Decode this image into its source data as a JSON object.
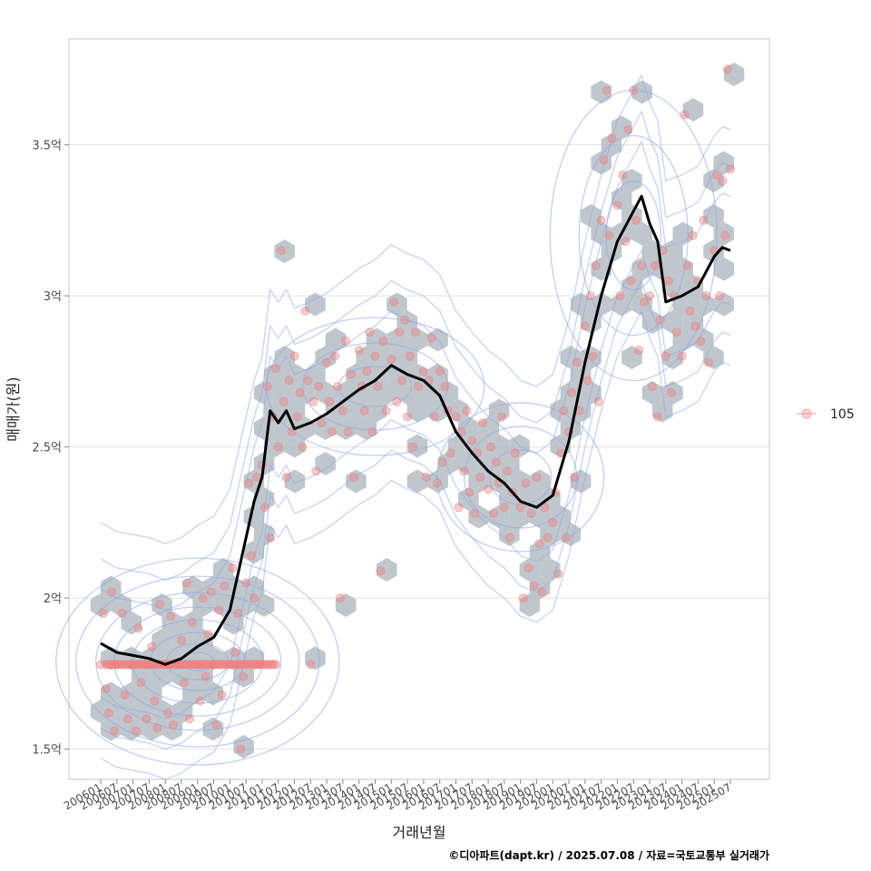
{
  "chart_data": {
    "type": "scatter",
    "xlabel": "거래년월",
    "ylabel": "매매가(원)",
    "credit": "©디아파트(dapt.kr) / 2025.07.08 / 자료=국토교통부 실거래가",
    "legend": {
      "placement": "right",
      "entries": [
        "105"
      ]
    },
    "grid": true,
    "xlim": [
      "2006-01",
      "2025-07"
    ],
    "ylim": [
      1.4,
      3.85
    ],
    "y_unit": "억",
    "y_ticks": [
      {
        "value": 1.5,
        "label": "1.5억"
      },
      {
        "value": 2.0,
        "label": "2억"
      },
      {
        "value": 2.5,
        "label": "2.5억"
      },
      {
        "value": 3.0,
        "label": "3억"
      },
      {
        "value": 3.5,
        "label": "3.5억"
      }
    ],
    "x_ticks": [
      "200601",
      "200607",
      "200701",
      "200707",
      "200801",
      "200807",
      "200901",
      "200907",
      "201001",
      "201007",
      "201101",
      "201107",
      "201201",
      "201207",
      "201301",
      "201307",
      "201401",
      "201407",
      "201501",
      "201507",
      "201601",
      "201607",
      "201701",
      "201707",
      "201801",
      "201807",
      "201901",
      "201907",
      "202001",
      "202007",
      "202101",
      "202107",
      "202201",
      "202207",
      "202301",
      "202307",
      "202401",
      "202407",
      "202501",
      "202507"
    ],
    "colors": {
      "points": "#f08080",
      "hexbin": "#aab4bc",
      "density": "#8fa8e8",
      "trend": "#000000"
    },
    "trend_line": {
      "name": "moving average",
      "points": [
        [
          "2006-01",
          1.85
        ],
        [
          "2006-07",
          1.82
        ],
        [
          "2007-01",
          1.81
        ],
        [
          "2007-07",
          1.8
        ],
        [
          "2008-01",
          1.78
        ],
        [
          "2008-07",
          1.8
        ],
        [
          "2009-01",
          1.84
        ],
        [
          "2009-07",
          1.87
        ],
        [
          "2010-01",
          1.96
        ],
        [
          "2010-07",
          2.2
        ],
        [
          "2010-10",
          2.32
        ],
        [
          "2011-01",
          2.4
        ],
        [
          "2011-04",
          2.62
        ],
        [
          "2011-07",
          2.58
        ],
        [
          "2011-10",
          2.62
        ],
        [
          "2012-01",
          2.56
        ],
        [
          "2012-07",
          2.58
        ],
        [
          "2013-01",
          2.61
        ],
        [
          "2013-07",
          2.65
        ],
        [
          "2014-01",
          2.69
        ],
        [
          "2014-07",
          2.72
        ],
        [
          "2015-01",
          2.77
        ],
        [
          "2015-07",
          2.74
        ],
        [
          "2016-01",
          2.72
        ],
        [
          "2016-07",
          2.67
        ],
        [
          "2017-01",
          2.55
        ],
        [
          "2017-07",
          2.48
        ],
        [
          "2018-01",
          2.42
        ],
        [
          "2018-07",
          2.38
        ],
        [
          "2019-01",
          2.32
        ],
        [
          "2019-07",
          2.3
        ],
        [
          "2020-01",
          2.34
        ],
        [
          "2020-07",
          2.52
        ],
        [
          "2021-01",
          2.78
        ],
        [
          "2021-07",
          3.0
        ],
        [
          "2022-01",
          3.18
        ],
        [
          "2022-07",
          3.28
        ],
        [
          "2022-10",
          3.33
        ],
        [
          "2023-01",
          3.24
        ],
        [
          "2023-04",
          3.18
        ],
        [
          "2023-07",
          2.98
        ],
        [
          "2024-01",
          3.0
        ],
        [
          "2024-07",
          3.03
        ],
        [
          "2025-01",
          3.13
        ],
        [
          "2025-04",
          3.16
        ],
        [
          "2025-07",
          3.15
        ]
      ]
    },
    "scatter_points": [
      [
        "2006-01",
        1.78
      ],
      [
        "2006-02",
        1.95
      ],
      [
        "2006-03",
        1.7
      ],
      [
        "2006-04",
        1.62
      ],
      [
        "2006-05",
        2.02
      ],
      [
        "2006-06",
        1.56
      ],
      [
        "2006-07",
        1.78
      ],
      [
        "2006-09",
        1.95
      ],
      [
        "2006-10",
        1.68
      ],
      [
        "2006-11",
        1.6
      ],
      [
        "2007-01",
        1.78
      ],
      [
        "2007-02",
        1.56
      ],
      [
        "2007-03",
        1.9
      ],
      [
        "2007-04",
        1.72
      ],
      [
        "2007-06",
        1.6
      ],
      [
        "2007-07",
        1.78
      ],
      [
        "2007-08",
        1.84
      ],
      [
        "2007-09",
        1.66
      ],
      [
        "2007-10",
        1.57
      ],
      [
        "2007-11",
        1.98
      ],
      [
        "2008-01",
        1.78
      ],
      [
        "2008-02",
        1.62
      ],
      [
        "2008-03",
        1.94
      ],
      [
        "2008-04",
        1.58
      ],
      [
        "2008-06",
        1.78
      ],
      [
        "2008-07",
        1.86
      ],
      [
        "2008-08",
        1.72
      ],
      [
        "2008-09",
        2.05
      ],
      [
        "2008-10",
        1.6
      ],
      [
        "2008-11",
        1.92
      ],
      [
        "2009-01",
        1.78
      ],
      [
        "2009-02",
        1.66
      ],
      [
        "2009-03",
        2.0
      ],
      [
        "2009-04",
        1.74
      ],
      [
        "2009-05",
        1.88
      ],
      [
        "2009-06",
        2.02
      ],
      [
        "2009-07",
        1.78
      ],
      [
        "2009-08",
        1.58
      ],
      [
        "2009-09",
        1.96
      ],
      [
        "2009-10",
        1.68
      ],
      [
        "2009-11",
        2.04
      ],
      [
        "2010-01",
        1.78
      ],
      [
        "2010-02",
        2.1
      ],
      [
        "2010-03",
        1.82
      ],
      [
        "2010-04",
        1.95
      ],
      [
        "2010-05",
        1.5
      ],
      [
        "2010-06",
        1.74
      ],
      [
        "2010-07",
        2.05
      ],
      [
        "2010-08",
        2.38
      ],
      [
        "2010-09",
        2.14
      ],
      [
        "2010-10",
        2.0
      ],
      [
        "2010-11",
        2.4
      ],
      [
        "2010-12",
        1.78
      ],
      [
        "2011-01",
        2.44
      ],
      [
        "2011-02",
        2.3
      ],
      [
        "2011-03",
        2.7
      ],
      [
        "2011-04",
        2.2
      ],
      [
        "2011-05",
        2.6
      ],
      [
        "2011-06",
        2.76
      ],
      [
        "2011-07",
        2.5
      ],
      [
        "2011-08",
        3.15
      ],
      [
        "2011-09",
        2.65
      ],
      [
        "2011-10",
        2.4
      ],
      [
        "2011-11",
        2.72
      ],
      [
        "2011-12",
        2.55
      ],
      [
        "2012-01",
        2.8
      ],
      [
        "2012-02",
        2.6
      ],
      [
        "2012-03",
        2.68
      ],
      [
        "2012-04",
        2.5
      ],
      [
        "2012-05",
        2.95
      ],
      [
        "2012-06",
        2.72
      ],
      [
        "2012-07",
        1.78
      ],
      [
        "2012-08",
        2.65
      ],
      [
        "2012-09",
        2.42
      ],
      [
        "2012-10",
        2.7
      ],
      [
        "2012-11",
        2.58
      ],
      [
        "2013-01",
        2.78
      ],
      [
        "2013-02",
        2.65
      ],
      [
        "2013-03",
        2.55
      ],
      [
        "2013-04",
        2.8
      ],
      [
        "2013-05",
        2.7
      ],
      [
        "2013-06",
        2.0
      ],
      [
        "2013-07",
        2.62
      ],
      [
        "2013-08",
        2.85
      ],
      [
        "2013-09",
        2.55
      ],
      [
        "2013-10",
        2.74
      ],
      [
        "2013-11",
        2.4
      ],
      [
        "2014-01",
        2.82
      ],
      [
        "2014-02",
        2.7
      ],
      [
        "2014-03",
        2.62
      ],
      [
        "2014-04",
        2.75
      ],
      [
        "2014-05",
        2.88
      ],
      [
        "2014-06",
        2.55
      ],
      [
        "2014-07",
        2.8
      ],
      [
        "2014-08",
        2.7
      ],
      [
        "2014-09",
        2.09
      ],
      [
        "2014-10",
        2.85
      ],
      [
        "2014-11",
        2.62
      ],
      [
        "2015-01",
        2.79
      ],
      [
        "2015-02",
        2.98
      ],
      [
        "2015-03",
        2.65
      ],
      [
        "2015-04",
        2.88
      ],
      [
        "2015-05",
        2.72
      ],
      [
        "2015-06",
        2.92
      ],
      [
        "2015-07",
        2.6
      ],
      [
        "2015-08",
        2.8
      ],
      [
        "2015-09",
        2.5
      ],
      [
        "2015-10",
        2.88
      ],
      [
        "2015-11",
        2.7
      ],
      [
        "2016-01",
        2.75
      ],
      [
        "2016-02",
        2.4
      ],
      [
        "2016-03",
        2.72
      ],
      [
        "2016-04",
        2.86
      ],
      [
        "2016-05",
        2.6
      ],
      [
        "2016-06",
        2.38
      ],
      [
        "2016-07",
        2.75
      ],
      [
        "2016-08",
        2.45
      ],
      [
        "2016-09",
        2.7
      ],
      [
        "2016-10",
        2.62
      ],
      [
        "2016-11",
        2.48
      ],
      [
        "2017-01",
        2.6
      ],
      [
        "2017-02",
        2.3
      ],
      [
        "2017-03",
        2.55
      ],
      [
        "2017-04",
        2.42
      ],
      [
        "2017-05",
        2.62
      ],
      [
        "2017-06",
        2.35
      ],
      [
        "2017-07",
        2.52
      ],
      [
        "2017-08",
        2.28
      ],
      [
        "2017-09",
        2.48
      ],
      [
        "2017-10",
        2.4
      ],
      [
        "2017-11",
        2.58
      ],
      [
        "2018-01",
        2.36
      ],
      [
        "2018-02",
        2.5
      ],
      [
        "2018-03",
        2.28
      ],
      [
        "2018-04",
        2.45
      ],
      [
        "2018-05",
        2.38
      ],
      [
        "2018-06",
        2.6
      ],
      [
        "2018-07",
        2.3
      ],
      [
        "2018-08",
        2.42
      ],
      [
        "2018-09",
        2.2
      ],
      [
        "2018-10",
        2.35
      ],
      [
        "2018-11",
        2.48
      ],
      [
        "2019-01",
        2.3
      ],
      [
        "2019-02",
        2.0
      ],
      [
        "2019-03",
        2.38
      ],
      [
        "2019-04",
        2.1
      ],
      [
        "2019-05",
        2.28
      ],
      [
        "2019-06",
        2.04
      ],
      [
        "2019-07",
        2.4
      ],
      [
        "2019-08",
        2.18
      ],
      [
        "2019-09",
        2.02
      ],
      [
        "2019-10",
        2.3
      ],
      [
        "2019-11",
        2.2
      ],
      [
        "2020-01",
        2.25
      ],
      [
        "2020-02",
        2.35
      ],
      [
        "2020-03",
        2.08
      ],
      [
        "2020-04",
        2.48
      ],
      [
        "2020-05",
        2.62
      ],
      [
        "2020-06",
        2.2
      ],
      [
        "2020-07",
        2.55
      ],
      [
        "2020-08",
        2.68
      ],
      [
        "2020-09",
        2.4
      ],
      [
        "2020-10",
        2.78
      ],
      [
        "2020-11",
        2.62
      ],
      [
        "2021-01",
        2.9
      ],
      [
        "2021-02",
        2.72
      ],
      [
        "2021-03",
        3.0
      ],
      [
        "2021-04",
        2.8
      ],
      [
        "2021-05",
        3.1
      ],
      [
        "2021-06",
        2.65
      ],
      [
        "2021-07",
        3.25
      ],
      [
        "2021-08",
        3.45
      ],
      [
        "2021-09",
        3.68
      ],
      [
        "2021-10",
        3.2
      ],
      [
        "2021-11",
        3.52
      ],
      [
        "2022-01",
        3.3
      ],
      [
        "2022-02",
        3.0
      ],
      [
        "2022-03",
        3.4
      ],
      [
        "2022-04",
        3.18
      ],
      [
        "2022-05",
        3.55
      ],
      [
        "2022-06",
        3.05
      ],
      [
        "2022-07",
        3.68
      ],
      [
        "2022-08",
        3.25
      ],
      [
        "2022-09",
        2.82
      ],
      [
        "2022-10",
        3.1
      ],
      [
        "2022-11",
        2.98
      ],
      [
        "2023-01",
        3.0
      ],
      [
        "2023-02",
        2.7
      ],
      [
        "2023-03",
        3.1
      ],
      [
        "2023-04",
        2.6
      ],
      [
        "2023-05",
        2.92
      ],
      [
        "2023-06",
        3.15
      ],
      [
        "2023-07",
        2.8
      ],
      [
        "2023-08",
        3.05
      ],
      [
        "2023-09",
        2.68
      ],
      [
        "2023-10",
        3.0
      ],
      [
        "2023-11",
        2.88
      ],
      [
        "2024-01",
        2.8
      ],
      [
        "2024-02",
        3.6
      ],
      [
        "2024-03",
        3.1
      ],
      [
        "2024-04",
        2.95
      ],
      [
        "2024-05",
        3.2
      ],
      [
        "2024-06",
        2.9
      ],
      [
        "2024-07",
        3.05
      ],
      [
        "2024-08",
        2.85
      ],
      [
        "2024-09",
        3.25
      ],
      [
        "2024-10",
        3.0
      ],
      [
        "2024-11",
        2.78
      ],
      [
        "2025-01",
        3.15
      ],
      [
        "2025-02",
        3.4
      ],
      [
        "2025-03",
        3.0
      ],
      [
        "2025-04",
        3.38
      ],
      [
        "2025-05",
        3.2
      ],
      [
        "2025-06",
        3.75
      ],
      [
        "2025-07",
        3.42
      ]
    ]
  }
}
